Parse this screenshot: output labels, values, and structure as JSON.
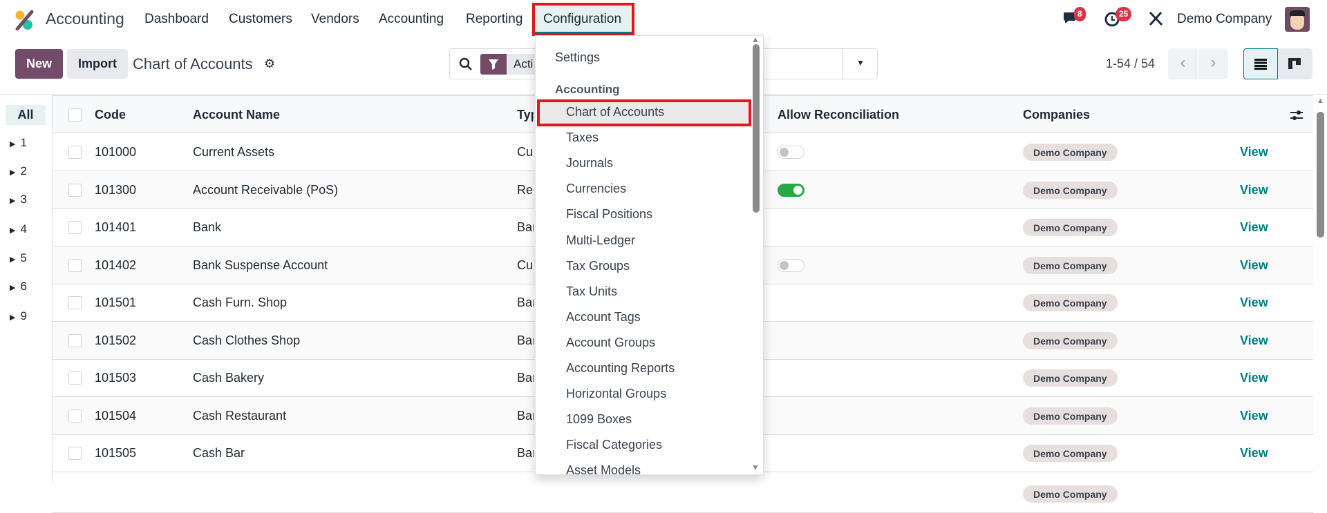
{
  "app": {
    "name": "Accounting",
    "brand_colors": [
      "#f9b233",
      "#21c2a8",
      "#714b67"
    ]
  },
  "nav": {
    "items": [
      "Dashboard",
      "Customers",
      "Vendors",
      "Accounting",
      "Reporting",
      "Configuration"
    ],
    "active": "Configuration"
  },
  "systray": {
    "messages_badge": "8",
    "activities_badge": "25",
    "company": "Demo Company"
  },
  "control": {
    "new_label": "New",
    "import_label": "Import",
    "title": "Chart of Accounts",
    "search_facet": "Acti",
    "pager": "1-54 / 54"
  },
  "sidebar": {
    "items": [
      "All",
      "1",
      "2",
      "3",
      "4",
      "5",
      "6",
      "9"
    ]
  },
  "table": {
    "headers": {
      "code": "Code",
      "name": "Account Name",
      "type": "Type",
      "reconcile": "Allow Reconciliation",
      "companies": "Companies"
    },
    "view_label": "View",
    "rows": [
      {
        "code": "101000",
        "name": "Current Assets",
        "type": "Current Assets",
        "reconcile": false,
        "company": "Demo Company"
      },
      {
        "code": "101300",
        "name": "Account Receivable (PoS)",
        "type": "Receivable",
        "reconcile": true,
        "company": "Demo Company"
      },
      {
        "code": "101401",
        "name": "Bank",
        "type": "Bank and Cash",
        "reconcile": null,
        "company": "Demo Company"
      },
      {
        "code": "101402",
        "name": "Bank Suspense Account",
        "type": "Current Assets",
        "reconcile": false,
        "company": "Demo Company"
      },
      {
        "code": "101501",
        "name": "Cash Furn. Shop",
        "type": "Bank and Cash",
        "reconcile": null,
        "company": "Demo Company"
      },
      {
        "code": "101502",
        "name": "Cash Clothes Shop",
        "type": "Bank and Cash",
        "reconcile": null,
        "company": "Demo Company"
      },
      {
        "code": "101503",
        "name": "Cash Bakery",
        "type": "Bank and Cash",
        "reconcile": null,
        "company": "Demo Company"
      },
      {
        "code": "101504",
        "name": "Cash Restaurant",
        "type": "Bank and Cash",
        "reconcile": null,
        "company": "Demo Company"
      },
      {
        "code": "101505",
        "name": "Cash Bar",
        "type": "Bank and Cash",
        "reconcile": null,
        "company": "Demo Company"
      }
    ]
  },
  "dropdown": {
    "settings": "Settings",
    "section": "Accounting",
    "items": [
      "Chart of Accounts",
      "Taxes",
      "Journals",
      "Currencies",
      "Fiscal Positions",
      "Multi-Ledger",
      "Tax Groups",
      "Tax Units",
      "Account Tags",
      "Account Groups",
      "Accounting Reports",
      "Horizontal Groups",
      "1099 Boxes",
      "Fiscal Categories",
      "Asset Models"
    ],
    "highlighted": "Chart of Accounts"
  },
  "colors": {
    "primary": "#714b67",
    "link": "#017e84",
    "highlight_box": "#e3151f",
    "toggle_on": "#28a745"
  }
}
